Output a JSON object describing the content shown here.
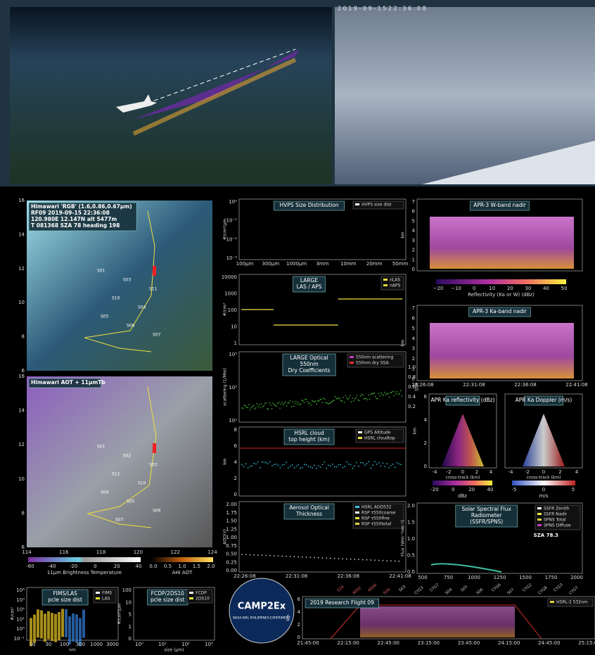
{
  "header": {
    "timestamp": "2 0 1 9 - 0 9 - 1 5   2 2 : 3 6 : 0 8"
  },
  "map_rgb": {
    "title_lines": [
      "Himawari 'RGB' (1.6,0.86,0.67μm)",
      "RF09  2019-09-15 22:36:08",
      "120.980E 12.147N  alt 5477m",
      "T 081368  SZA 78  heading 198"
    ],
    "yticks": [
      "16",
      "14",
      "12",
      "10",
      "8",
      "6"
    ],
    "sites": [
      "S01",
      "S03",
      "S11",
      "S10",
      "S04",
      "S05",
      "S06",
      "S07"
    ]
  },
  "map_aot": {
    "title_lines": [
      "Himawari AOT + 11μmTb"
    ],
    "yticks": [
      "16",
      "14",
      "12",
      "10",
      "8",
      "6"
    ],
    "xticks": [
      "114",
      "116",
      "118",
      "120",
      "122",
      "124"
    ],
    "sites": [
      "S01",
      "S02",
      "S03",
      "S12",
      "S10",
      "S04",
      "S05",
      "S06",
      "S07"
    ]
  },
  "cbar_bt": {
    "ticks": [
      "-60",
      "-40",
      "-20",
      "0",
      "20",
      "40"
    ],
    "label": "11μm Brightness Temperature"
  },
  "cbar_aot": {
    "ticks": [
      "0.0",
      "0.5",
      "1.0",
      "1.5",
      "2.0"
    ],
    "label": "AHI AOT"
  },
  "panels": {
    "hvps": {
      "title": [
        "HVPS Size Distribution"
      ],
      "legend": [
        "HVPS size dist"
      ],
      "ylabel": "#/cm³/μm",
      "yticks": [
        "10⁰",
        "10⁻¹",
        "10⁻²",
        "10⁻³"
      ],
      "xticks": [
        "100μm",
        "300μm",
        "1000μm",
        "3mm",
        "10mm",
        "20mm",
        "50mm"
      ]
    },
    "large": {
      "title": [
        "LARGE",
        "LAS / APS"
      ],
      "legend": [
        "nLAS",
        "nAPS"
      ],
      "ylabel": "#/cm³",
      "yticks": [
        "10000",
        "1000",
        "100",
        "10",
        "1"
      ]
    },
    "optical": {
      "title": [
        "LARGE Optical",
        "550nm",
        "Dry Coefficients"
      ],
      "legend": [
        "550nm scattering",
        "550nm dry SSA"
      ],
      "ylabel": "scattering (1/Mm)",
      "yticks": [
        "10³",
        "10²",
        "10¹"
      ],
      "y2label": "SSA",
      "y2ticks": [
        "1.0",
        "0.8",
        "0.6",
        "0.4",
        "0.2"
      ]
    },
    "hsrl": {
      "title": [
        "HSRL cloud",
        "top height (km)"
      ],
      "legend": [
        "GPS Altitude",
        "HSRL cloudtop"
      ],
      "ylabel": "km",
      "yticks": [
        "8",
        "6",
        "4",
        "2",
        "0"
      ]
    },
    "aod": {
      "title": [
        "Aerosol Optical",
        "Thickness"
      ],
      "legend": [
        "HSRL AOD532",
        "RSP τ550coarse",
        "RSP τ550fine",
        "RSP τ550total"
      ],
      "ylabel": "AOD(τ)",
      "yticks": [
        "2.00",
        "1.75",
        "1.50",
        "1.25",
        "1.00",
        "0.75",
        "0.50",
        "0.25",
        "0.00"
      ],
      "xticks": [
        "22:26:08",
        "22:31:08",
        "22:36:08",
        "22:41:08"
      ]
    },
    "aprw": {
      "title": [
        "APR-3 W-band nadir"
      ],
      "ylabel": "km",
      "yticks": [
        "7",
        "6",
        "5",
        "4",
        "3",
        "2",
        "1",
        "0"
      ],
      "cbar_ticks": [
        "−20",
        "−10",
        "0",
        "10",
        "20",
        "30",
        "40",
        "50"
      ],
      "cbar_label": "Reflectivity (Ka or W) (dBz)"
    },
    "aprka": {
      "title": [
        "APR-3 Ka-band nadir"
      ],
      "ylabel": "km",
      "yticks": [
        "7",
        "6",
        "5",
        "4",
        "3",
        "2",
        "1",
        "0"
      ],
      "xticks": [
        "22:26:08",
        "22:31:08",
        "22:36:08",
        "22:41:08"
      ]
    },
    "refl": {
      "title": [
        "APR Ka reflectivity (dBz)"
      ],
      "ylabel": "km",
      "yticks": [
        "6",
        "4",
        "2",
        "0"
      ],
      "xticks": [
        "-4",
        "-2",
        "0",
        "2",
        "4"
      ],
      "xlabel": "cross-track (km)",
      "cbar_ticks": [
        "-20",
        "0",
        "20",
        "40"
      ],
      "cbar_label": "dBz"
    },
    "dopp": {
      "title": [
        "APR Ka Doppler (m/s)"
      ],
      "xticks": [
        "-4",
        "-2",
        "0",
        "2",
        "4"
      ],
      "xlabel": "cross-track (km)",
      "cbar_ticks": [
        "-5",
        "0",
        "5"
      ],
      "cbar_label": "m/s"
    },
    "ssfr": {
      "title": [
        "Solar Spectral Flux",
        "Radiometer",
        "(SSFR/SPNS)"
      ],
      "legend": [
        "SSFR Zenith",
        "SSFR Nadir",
        "SPNS Total",
        "SPNS Diffuse"
      ],
      "note": "SZA 78.3",
      "ylabel": "Flux (Wm⁻²nm⁻¹)",
      "yticks": [
        "2.0",
        "1.5",
        "1.0",
        "0.5",
        "0.0"
      ],
      "xticks": [
        "500",
        "750",
        "1000",
        "1250",
        "1500",
        "1750",
        "2000"
      ]
    },
    "fims": {
      "title": [
        "FIMS/LAS",
        "pcle size dist"
      ],
      "legend": [
        "FIMS",
        "LAS"
      ],
      "ylabel": "#/cm³",
      "yticks": [
        "10⁴",
        "10³",
        "10²",
        "10¹",
        "10⁰",
        "10⁻¹"
      ],
      "xticks": [
        "10",
        "30",
        "100",
        "300",
        "1000",
        "3000"
      ],
      "xlabel": "nm"
    },
    "fcdp": {
      "title": [
        "FCDP/2DS10",
        "pcle size dist"
      ],
      "legend": [
        "FCDP",
        "2DS10"
      ],
      "ylabel": "#/cm³/μm",
      "yticks": [
        "100",
        "10",
        "5",
        "1",
        "0"
      ],
      "xticks": [
        "10⁰",
        "10¹",
        "10²",
        "10³"
      ],
      "xlabel": "size (μm)"
    },
    "flight": {
      "title": [
        "2019 Research Flight 09"
      ],
      "legend": [
        "HSRL-2 532nm"
      ],
      "ylabel": "km",
      "yticks": [
        "6",
        "4",
        "2",
        "0"
      ],
      "xticks": [
        "21:45:00",
        "22:15:00",
        "22:45:00",
        "23:15:00",
        "23:45:00",
        "24:15:00",
        "24:45:00",
        "25:15:00"
      ]
    }
  },
  "flight_marks": [
    "S16",
    "AE02",
    "AE06",
    "S04",
    "S03",
    "CYG3",
    "CYG7",
    "S04",
    "S05",
    "S06",
    "CYG6",
    "S07",
    "CYG2",
    "CYG8",
    "CYG3",
    "CYG7"
  ],
  "logo": {
    "name": "CAMP2Ex",
    "sub": "NASA  NRL  PHILIPPINES EXPERIMENT"
  }
}
